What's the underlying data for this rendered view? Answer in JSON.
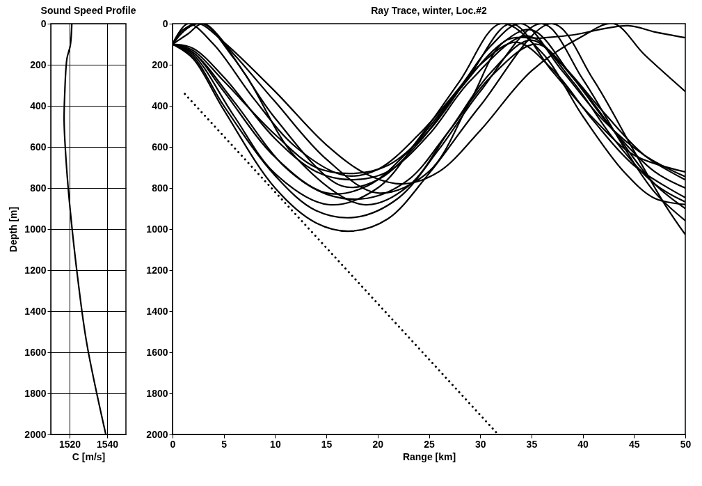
{
  "chart_data": [
    {
      "type": "line",
      "title": "Sound Speed Profile",
      "xlabel": "C [m/s]",
      "ylabel": "Depth [m]",
      "xlim": [
        1510,
        1550
      ],
      "xticks": [
        1520,
        1540
      ],
      "ylim": [
        2000,
        0
      ],
      "yticks": [
        0,
        200,
        400,
        600,
        800,
        1000,
        1200,
        1400,
        1600,
        1800,
        2000
      ],
      "grid": true,
      "series": [
        {
          "color": "#000000",
          "x": [
            1521.2,
            1520.4,
            1518.6,
            1517.4,
            1517.1,
            1518.3,
            1520.4,
            1524.3,
            1529.2,
            1539.3
          ],
          "values": [
            0,
            105,
            170,
            347,
            477,
            687,
            913,
            1236,
            1559,
            2000
          ]
        }
      ]
    },
    {
      "type": "line",
      "title": "Ray Trace, winter, Loc.#2",
      "xlabel": "Range [km]",
      "xlim": [
        0,
        50
      ],
      "xticks": [
        0,
        5,
        10,
        15,
        20,
        25,
        30,
        35,
        40,
        45,
        50
      ],
      "ylim": [
        2000,
        0
      ],
      "yticks": [
        0,
        200,
        400,
        600,
        800,
        1000,
        1200,
        1400,
        1600,
        1800,
        2000
      ],
      "grid": false,
      "series": [
        {
          "color": "#000000",
          "x": [
            0,
            1,
            2.5,
            5,
            10,
            15,
            19,
            22.5,
            26,
            30,
            35,
            40,
            43,
            46,
            50
          ],
          "values": [
            100,
            40,
            0,
            90,
            330,
            590,
            735,
            780,
            720,
            520,
            230,
            60,
            0,
            150,
            330
          ]
        },
        {
          "color": "#000000",
          "x": [
            0,
            1.5,
            3,
            6,
            10,
            15,
            20,
            25,
            29,
            32.4,
            36,
            39,
            44.4,
            47,
            50
          ],
          "values": [
            100,
            50,
            0,
            150,
            380,
            660,
            824,
            720,
            380,
            85,
            70,
            55,
            10,
            40,
            68
          ]
        },
        {
          "color": "#000000",
          "x": [
            0,
            2,
            5,
            10,
            14,
            17.6,
            21,
            25,
            29,
            33,
            37,
            41,
            45,
            50
          ],
          "values": [
            100,
            130,
            280,
            540,
            700,
            729,
            690,
            520,
            250,
            0,
            230,
            460,
            640,
            722
          ]
        },
        {
          "color": "#000000",
          "x": [
            0,
            1.5,
            4,
            8,
            12,
            16.8,
            20,
            24,
            28,
            31,
            34,
            38,
            42,
            46,
            50
          ],
          "values": [
            100,
            0,
            100,
            370,
            600,
            739,
            710,
            540,
            310,
            110,
            0,
            230,
            470,
            640,
            745
          ]
        },
        {
          "color": "#000000",
          "x": [
            0,
            2,
            5,
            10,
            14,
            17.5,
            21,
            25,
            29,
            34.5,
            38,
            42,
            46,
            50
          ],
          "values": [
            100,
            120,
            260,
            560,
            720,
            760,
            720,
            540,
            280,
            60,
            200,
            430,
            640,
            760
          ]
        },
        {
          "color": "#000000",
          "x": [
            0,
            2,
            5,
            10,
            15,
            19,
            23,
            27,
            30,
            33.5,
            37,
            41,
            45,
            50
          ],
          "values": [
            100,
            140,
            330,
            650,
            824,
            790,
            620,
            380,
            200,
            90,
            220,
            470,
            690,
            847
          ]
        },
        {
          "color": "#000000",
          "x": [
            0,
            1,
            3,
            7,
            12,
            18.6,
            23,
            27,
            31,
            35,
            39,
            43,
            47,
            50
          ],
          "values": [
            100,
            30,
            0,
            240,
            650,
            881,
            790,
            520,
            240,
            80,
            280,
            560,
            780,
            868
          ]
        },
        {
          "color": "#000000",
          "x": [
            0,
            2,
            6,
            10,
            15.2,
            20,
            24,
            28,
            32,
            36,
            40,
            44,
            47,
            50
          ],
          "values": [
            100,
            150,
            450,
            730,
            881,
            800,
            560,
            280,
            0,
            140,
            450,
            720,
            850,
            880
          ]
        },
        {
          "color": "#000000",
          "x": [
            0,
            2,
            5,
            10,
            14,
            17.9,
            22,
            26,
            30,
            36,
            40,
            44,
            47,
            50
          ],
          "values": [
            100,
            160,
            400,
            740,
            910,
            942,
            850,
            610,
            330,
            0,
            270,
            600,
            820,
            959
          ]
        },
        {
          "color": "#000000",
          "x": [
            0,
            2,
            5,
            10,
            14,
            17.4,
            21,
            25,
            30,
            37,
            41,
            45,
            48,
            50
          ],
          "values": [
            100,
            170,
            420,
            800,
            970,
            1010,
            950,
            730,
            400,
            0,
            270,
            620,
            880,
            1027
          ]
        },
        {
          "color": "#000000",
          "x": [
            0,
            2,
            6,
            11,
            15,
            19,
            23,
            27,
            31,
            35.5,
            39,
            43,
            47,
            50
          ],
          "values": [
            100,
            140,
            380,
            700,
            830,
            850,
            760,
            520,
            260,
            100,
            260,
            520,
            780,
            900
          ]
        },
        {
          "color": "#000000",
          "x": [
            0,
            1.5,
            3,
            6,
            10,
            16.5,
            20,
            24,
            28,
            32,
            35,
            39,
            43,
            47,
            50
          ],
          "values": [
            100,
            20,
            0,
            170,
            460,
            790,
            760,
            580,
            320,
            100,
            30,
            260,
            520,
            720,
            800
          ]
        },
        {
          "color": "#000000",
          "line_style": "dotted",
          "x": [
            1.2,
            31.75
          ],
          "values": [
            342,
            2000
          ]
        }
      ]
    }
  ]
}
